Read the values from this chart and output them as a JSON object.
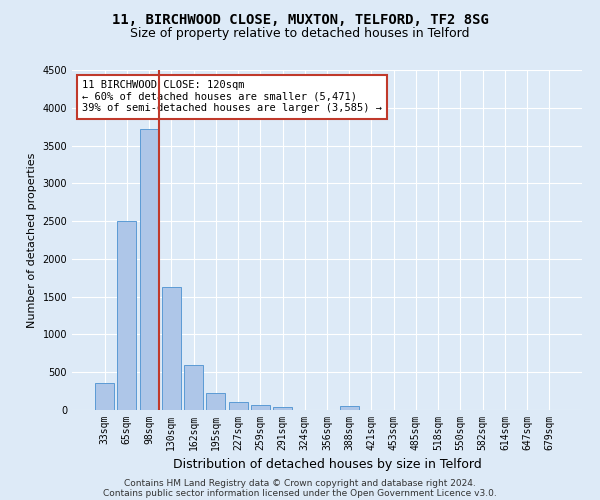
{
  "title1": "11, BIRCHWOOD CLOSE, MUXTON, TELFORD, TF2 8SG",
  "title2": "Size of property relative to detached houses in Telford",
  "xlabel": "Distribution of detached houses by size in Telford",
  "ylabel": "Number of detached properties",
  "categories": [
    "33sqm",
    "65sqm",
    "98sqm",
    "130sqm",
    "162sqm",
    "195sqm",
    "227sqm",
    "259sqm",
    "291sqm",
    "324sqm",
    "356sqm",
    "388sqm",
    "421sqm",
    "453sqm",
    "485sqm",
    "518sqm",
    "550sqm",
    "582sqm",
    "614sqm",
    "647sqm",
    "679sqm"
  ],
  "values": [
    360,
    2500,
    3720,
    1630,
    590,
    220,
    100,
    60,
    35,
    0,
    0,
    50,
    0,
    0,
    0,
    0,
    0,
    0,
    0,
    0,
    0
  ],
  "bar_color": "#aec6e8",
  "bar_edge_color": "#5b9bd5",
  "vline_color": "#c0392b",
  "annotation_text": "11 BIRCHWOOD CLOSE: 120sqm\n← 60% of detached houses are smaller (5,471)\n39% of semi-detached houses are larger (3,585) →",
  "annotation_box_color": "#ffffff",
  "annotation_box_edge": "#c0392b",
  "ylim": [
    0,
    4500
  ],
  "yticks": [
    0,
    500,
    1000,
    1500,
    2000,
    2500,
    3000,
    3500,
    4000,
    4500
  ],
  "footnote1": "Contains HM Land Registry data © Crown copyright and database right 2024.",
  "footnote2": "Contains public sector information licensed under the Open Government Licence v3.0.",
  "bg_color": "#ddeaf7",
  "grid_color": "#ffffff",
  "title1_fontsize": 10,
  "title2_fontsize": 9,
  "xlabel_fontsize": 9,
  "ylabel_fontsize": 8,
  "tick_fontsize": 7,
  "annotation_fontsize": 7.5,
  "footnote_fontsize": 6.5
}
